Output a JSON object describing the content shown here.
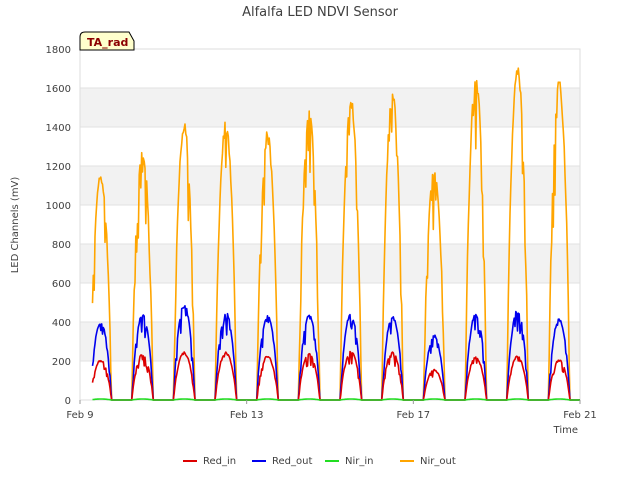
{
  "chart_data": {
    "type": "line",
    "title": "Alfalfa LED NDVI Sensor",
    "xlabel": "Time",
    "ylabel": "LED Channels (mV)",
    "badge": "TA_rad",
    "xlim": [
      0,
      12
    ],
    "ylim": [
      0,
      1800
    ],
    "x_unit": "days since Feb 9",
    "yticks": [
      0,
      200,
      400,
      600,
      800,
      1000,
      1200,
      1400,
      1600,
      1800
    ],
    "xticks": [
      {
        "value": 0,
        "label": "Feb 9"
      },
      {
        "value": 4,
        "label": "Feb 13"
      },
      {
        "value": 8,
        "label": "Feb 17"
      },
      {
        "value": 12,
        "label": "Feb 21"
      }
    ],
    "day_peaks": {
      "days": [
        0,
        1,
        2,
        3,
        4,
        5,
        6,
        7,
        8,
        9,
        10,
        11
      ],
      "Red_in": [
        210,
        240,
        250,
        250,
        230,
        245,
        255,
        250,
        160,
        225,
        230,
        210
      ],
      "Red_out": [
        410,
        455,
        500,
        460,
        445,
        445,
        455,
        440,
        340,
        455,
        470,
        430
      ],
      "Nir_in": [
        5,
        5,
        5,
        5,
        5,
        5,
        5,
        5,
        5,
        5,
        5,
        5
      ],
      "Nir_out": [
        1190,
        1320,
        1445,
        1450,
        1400,
        1505,
        1580,
        1605,
        1215,
        1705,
        1765,
        1670
      ]
    },
    "series": [
      {
        "name": "Red_in",
        "color": "#dd0000",
        "key": "Red_in"
      },
      {
        "name": "Red_out",
        "color": "#0000ee",
        "key": "Red_out"
      },
      {
        "name": "Nir_in",
        "color": "#22dd22",
        "key": "Nir_in"
      },
      {
        "name": "Nir_out",
        "color": "#ffa500",
        "key": "Nir_out"
      }
    ],
    "grid": true,
    "legend_position": "bottom"
  }
}
